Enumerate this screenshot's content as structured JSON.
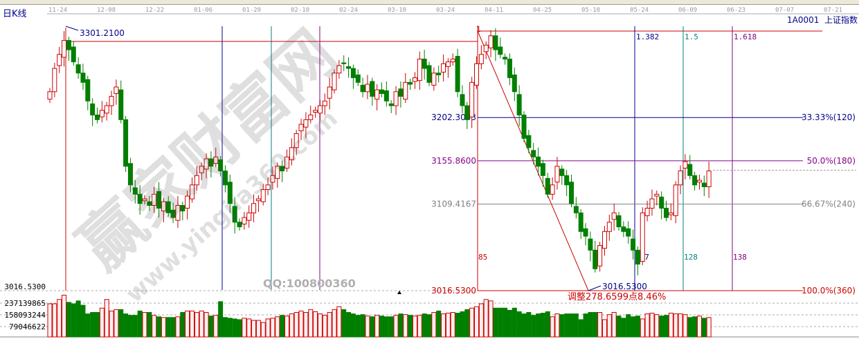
{
  "window": {
    "period_label": "日K线",
    "symbol_label": "1A0001  上证指数"
  },
  "watermark": {
    "brand": "赢家财富网",
    "url": "www.yingjia360.com",
    "qq": "QQ:100800360"
  },
  "chart_data": {
    "type": "candlestick",
    "x_ticks": [
      "11-24",
      "12-08",
      "12-22",
      "01-06",
      "01-20",
      "02-10",
      "02-24",
      "03-10",
      "03-24",
      "04-11",
      "04-25",
      "05-10",
      "05-24",
      "06-09",
      "06-23",
      "07-07",
      "07-21"
    ],
    "close": [
      3230,
      3255,
      3270,
      3285,
      3275,
      3262,
      3250,
      3240,
      3220,
      3205,
      3200,
      3210,
      3215,
      3225,
      3235,
      3200,
      3150,
      3130,
      3120,
      3110,
      3115,
      3108,
      3120,
      3105,
      3112,
      3100,
      3095,
      3108,
      3102,
      3118,
      3130,
      3140,
      3150,
      3158,
      3150,
      3160,
      3145,
      3130,
      3110,
      3090,
      3085,
      3095,
      3100,
      3110,
      3115,
      3125,
      3130,
      3140,
      3150,
      3145,
      3160,
      3170,
      3185,
      3195,
      3200,
      3205,
      3210,
      3215,
      3220,
      3235,
      3250,
      3258,
      3260,
      3255,
      3245,
      3240,
      3230,
      3238,
      3225,
      3232,
      3228,
      3220,
      3215,
      3230,
      3225,
      3240,
      3238,
      3245,
      3265,
      3255,
      3240,
      3250,
      3248,
      3260,
      3262,
      3265,
      3230,
      3215,
      3200,
      3240,
      3260,
      3270,
      3280,
      3290,
      3275,
      3270,
      3265,
      3245,
      3230,
      3205,
      3180,
      3170,
      3160,
      3150,
      3140,
      3120,
      3130,
      3150,
      3140,
      3130,
      3110,
      3100,
      3080,
      3075,
      3060,
      3040,
      3065,
      3080,
      3090,
      3100,
      3085,
      3080,
      3075,
      3060,
      3045,
      3100,
      3105,
      3115,
      3120,
      3105,
      3095,
      3100,
      3130,
      3145,
      3155,
      3140,
      3130,
      3135,
      3128,
      3145
    ],
    "volume": [
      230000000.0,
      230000000.0,
      260000000.0,
      290000000.0,
      240000000.0,
      230000000.0,
      250000000.0,
      220000000.0,
      160000000.0,
      170000000.0,
      170000000.0,
      200000000.0,
      260000000.0,
      180000000.0,
      190000000.0,
      190000000.0,
      160000000.0,
      150000000.0,
      150000000.0,
      180000000.0,
      170000000.0,
      170000000.0,
      150000000.0,
      140000000.0,
      135000000.0,
      135000000.0,
      135000000.0,
      140000000.0,
      170000000.0,
      180000000.0,
      180000000.0,
      170000000.0,
      180000000.0,
      170000000.0,
      145000000.0,
      150000000.0,
      245000000.0,
      135000000.0,
      130000000.0,
      125000000.0,
      120000000.0,
      130000000.0,
      125000000.0,
      115000000.0,
      115000000.0,
      100000000.0,
      125000000.0,
      130000000.0,
      140000000.0,
      150000000.0,
      145000000.0,
      160000000.0,
      170000000.0,
      180000000.0,
      170000000.0,
      190000000.0,
      175000000.0,
      160000000.0,
      150000000.0,
      170000000.0,
      190000000.0,
      210000000.0,
      190000000.0,
      170000000.0,
      160000000.0,
      150000000.0,
      155000000.0,
      145000000.0,
      140000000.0,
      150000000.0,
      145000000.0,
      140000000.0,
      140000000.0,
      150000000.0,
      160000000.0,
      155000000.0,
      150000000.0,
      145000000.0,
      150000000.0,
      160000000.0,
      155000000.0,
      170000000.0,
      180000000.0,
      160000000.0,
      165000000.0,
      170000000.0,
      165000000.0,
      175000000.0,
      190000000.0,
      200000000.0,
      210000000.0,
      230000000.0,
      260000000.0,
      250000000.0,
      200000000.0,
      200000000.0,
      200000000.0,
      185000000.0,
      200000000.0,
      175000000.0,
      160000000.0,
      170000000.0,
      150000000.0,
      160000000.0,
      165000000.0,
      175000000.0,
      140000000.0,
      160000000.0,
      155000000.0,
      160000000.0,
      160000000.0,
      160000000.0,
      120000000.0,
      160000000.0,
      170000000.0,
      170000000.0,
      170000000.0,
      120000000.0,
      155000000.0,
      170000000.0,
      145000000.0,
      130000000.0,
      155000000.0,
      140000000.0,
      145000000.0,
      125000000.0,
      160000000.0,
      165000000.0,
      155000000.0,
      145000000.0,
      150000000.0,
      165000000.0,
      160000000.0,
      160000000.0,
      155000000.0,
      135000000.0,
      140000000.0,
      145000000.0,
      130000000.0,
      135000000.0
    ],
    "y_labels": {
      "high": "3301.2100",
      "low_left": "3016.5300",
      "vol1": "237139865",
      "vol2": "158093244",
      "vol3": "79046622"
    },
    "fib_levels": [
      {
        "price": 3202.3033,
        "price_label": "3202.3033",
        "ratio_label": "33.33%(120)",
        "color": "#00008b"
      },
      {
        "price": 3155.86,
        "price_label": "3155.8600",
        "ratio_label": "50.0%(180)",
        "color": "#8b008b"
      },
      {
        "price": 3109.4167,
        "price_label": "3109.4167",
        "ratio_label": "66.67%(240)",
        "color": "#808080"
      },
      {
        "price": 3016.53,
        "price_label": "3016.5300",
        "ratio_label": "100.0%(360)",
        "color": "#cc0000"
      }
    ],
    "fib_time_ratios": [
      {
        "label": "1.382",
        "color": "#00008b"
      },
      {
        "label": "1.5",
        "color": "#008080"
      },
      {
        "label": "1.618",
        "color": "#800080"
      }
    ],
    "fib_time_counts": [
      {
        "label": "85",
        "color": "#cc0000"
      },
      {
        "label": "117",
        "color": "#00008b"
      },
      {
        "label": "128",
        "color": "#008080"
      },
      {
        "label": "138",
        "color": "#800080"
      }
    ],
    "start_marker": "1",
    "low_point_label": "3016.5300",
    "adjustment_label": "调整278.6599点8.46%",
    "up_color": "#cc0000",
    "down_color": "#007f00"
  }
}
